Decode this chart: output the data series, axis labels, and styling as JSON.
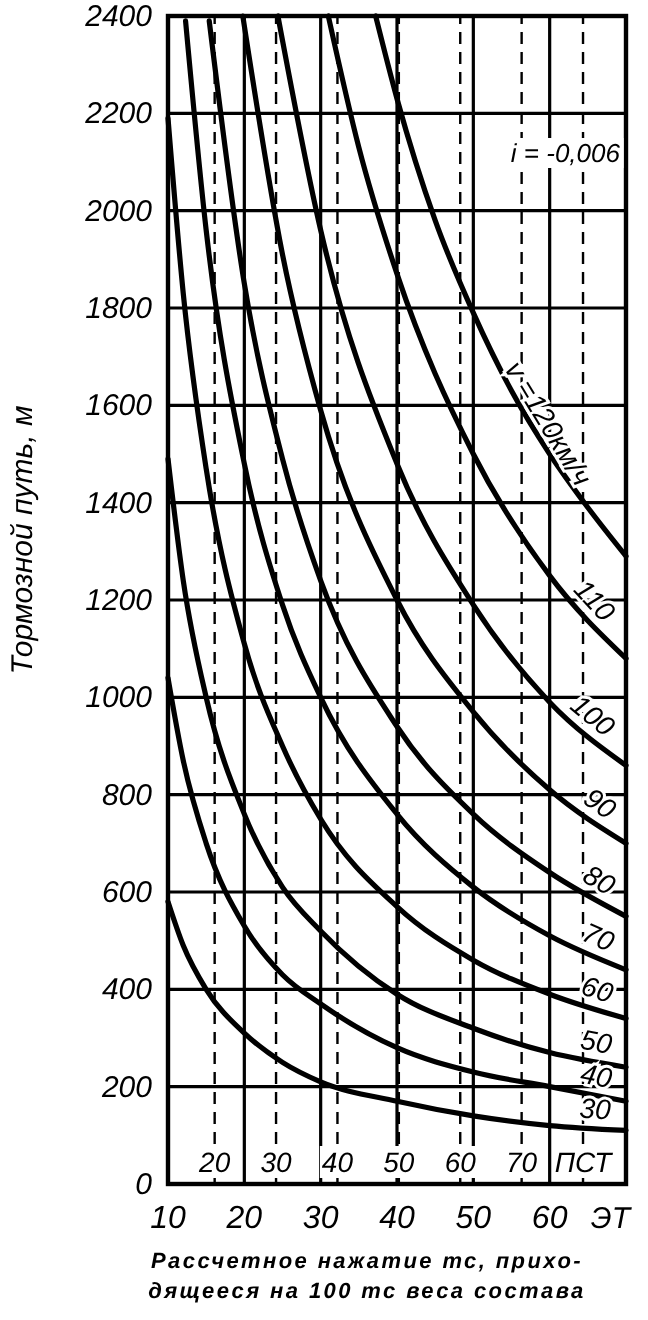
{
  "chart_data": {
    "type": "line",
    "xlabel": "Рассчетное нажатие тс, прихо-\nдящееся на 100 тс веса состава",
    "ylabel": "Тормозной путь, м",
    "xlim": [
      10,
      70
    ],
    "xticks": [
      10,
      20,
      30,
      40,
      50,
      60
    ],
    "ylim": [
      0,
      2400
    ],
    "yticks": [
      0,
      200,
      400,
      600,
      800,
      1000,
      1200,
      1400,
      1600,
      1800,
      2000,
      2200,
      2400
    ],
    "x2lim": [
      12.4,
      87
    ],
    "x2ticks": [
      20,
      30,
      40,
      50,
      60,
      70,
      {
        "value": 80,
        "label": "ПСТ"
      }
    ],
    "grid": true,
    "marker": "none",
    "line_style": "solid",
    "annotations": [
      "i = -0,006",
      "ЭТ"
    ],
    "series": [
      {
        "name": "30",
        "color": "#000000",
        "x": [
          10,
          12,
          15,
          20,
          25,
          30,
          40,
          50,
          60,
          70
        ],
        "values": [
          580,
          490,
          400,
          310,
          250,
          210,
          170,
          140,
          120,
          110
        ]
      },
      {
        "name": "40",
        "color": "#000000",
        "x": [
          10,
          12,
          15,
          20,
          25,
          30,
          40,
          50,
          60,
          70
        ],
        "values": [
          1040,
          870,
          700,
          530,
          430,
          370,
          280,
          230,
          200,
          170
        ]
      },
      {
        "name": "50",
        "color": "#000000",
        "x": [
          10,
          12,
          15,
          20,
          25,
          30,
          40,
          50,
          60,
          70
        ],
        "values": [
          1490,
          1240,
          1000,
          760,
          610,
          520,
          390,
          320,
          270,
          240
        ]
      },
      {
        "name": "60",
        "color": "#000000",
        "x": [
          10,
          12,
          15,
          20,
          25,
          30,
          40,
          50,
          60,
          70
        ],
        "values": [
          2190,
          1830,
          1470,
          1110,
          900,
          750,
          570,
          460,
          390,
          340
        ]
      },
      {
        "name": "70",
        "color": "#000000",
        "x": [
          12.3,
          15,
          20,
          25,
          30,
          40,
          50,
          60,
          70
        ],
        "values": [
          2390,
          1960,
          1480,
          1190,
          1000,
          760,
          610,
          510,
          440
        ]
      },
      {
        "name": "80",
        "color": "#000000",
        "x": [
          15.4,
          20,
          25,
          30,
          40,
          50,
          60,
          70
        ],
        "values": [
          2390,
          1850,
          1490,
          1240,
          940,
          760,
          640,
          550
        ]
      },
      {
        "name": "90",
        "color": "#000000",
        "x": [
          19.8,
          25,
          30,
          40,
          50,
          60,
          70
        ],
        "values": [
          2400,
          1910,
          1590,
          1200,
          970,
          810,
          700
        ]
      },
      {
        "name": "100",
        "color": "#000000",
        "x": [
          24.4,
          30,
          40,
          50,
          60,
          70
        ],
        "values": [
          2400,
          1960,
          1480,
          1190,
          990,
          860
        ]
      },
      {
        "name": "110",
        "color": "#000000",
        "x": [
          31,
          35,
          40,
          50,
          60,
          70
        ],
        "values": [
          2400,
          2130,
          1870,
          1500,
          1250,
          1080
        ]
      },
      {
        "name": "v =120км/ч",
        "color": "#000000",
        "x": [
          37.2,
          40,
          45,
          50,
          55,
          60,
          65,
          70
        ],
        "values": [
          2400,
          2230,
          1980,
          1790,
          1630,
          1500,
          1390,
          1290
        ]
      }
    ]
  }
}
